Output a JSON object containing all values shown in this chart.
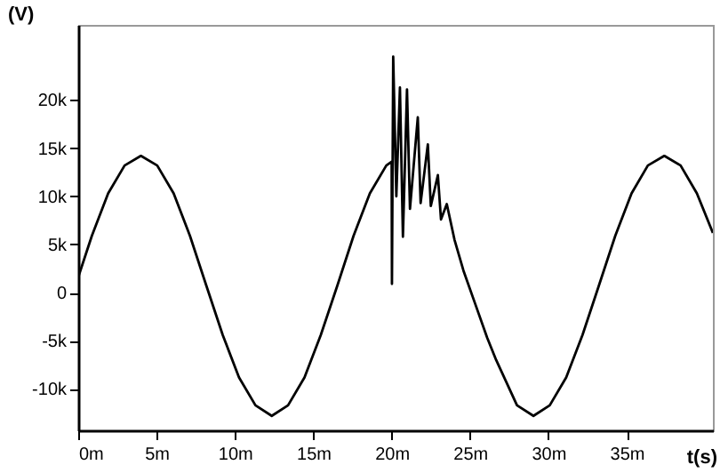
{
  "chart_data": {
    "type": "line",
    "xlabel": "t(s)",
    "ylabel": "(V)",
    "x": [
      0,
      0.87,
      1.91,
      2.96,
      4.0,
      5.04,
      6.09,
      7.13,
      8.18,
      9.22,
      10.26,
      11.31,
      12.35,
      13.39,
      14.44,
      15.48,
      16.53,
      17.57,
      18.61,
      19.66,
      20.0,
      20.02,
      20.1,
      20.3,
      20.53,
      20.72,
      20.98,
      21.17,
      21.67,
      21.85,
      22.31,
      22.5,
      22.95,
      23.15,
      23.52,
      24.01,
      24.58,
      25.34,
      26.1,
      26.67,
      28.0,
      29.05,
      30.09,
      31.14,
      32.18,
      33.22,
      34.27,
      35.31,
      36.35,
      37.4,
      38.44,
      39.48,
      40.5
    ],
    "series": [
      {
        "color": "#000000",
        "values": [
          1600,
          5900,
          10300,
          13200,
          14200,
          13200,
          10300,
          5900,
          700,
          -4400,
          -8800,
          -11700,
          -12800,
          -11700,
          -8800,
          -4400,
          700,
          5900,
          10300,
          13200,
          13600,
          900,
          24500,
          10000,
          21300,
          5800,
          21100,
          8700,
          18200,
          9300,
          15400,
          9000,
          12200,
          7600,
          9200,
          5500,
          2300,
          -1200,
          -4700,
          -7000,
          -11700,
          -12800,
          -11700,
          -8800,
          -4400,
          700,
          5900,
          10300,
          13200,
          14200,
          13200,
          10300,
          6200
        ]
      }
    ],
    "xlim": [
      0,
      40.5
    ],
    "ylim": [
      -14300,
      27800
    ],
    "xticks": [
      {
        "value": 0,
        "label": "0m"
      },
      {
        "value": 5,
        "label": "5m"
      },
      {
        "value": 10,
        "label": "10m"
      },
      {
        "value": 15,
        "label": "15m"
      },
      {
        "value": 20,
        "label": "20m"
      },
      {
        "value": 25,
        "label": "25m"
      },
      {
        "value": 30,
        "label": "30m"
      },
      {
        "value": 35,
        "label": "35m"
      }
    ],
    "yticks": [
      {
        "value": -10000,
        "label": "-10k"
      },
      {
        "value": -5000,
        "label": "-5k"
      },
      0,
      {
        "value": 5000,
        "label": "5k"
      },
      {
        "value": 10000,
        "label": "10k"
      },
      {
        "value": 15000,
        "label": "15k"
      },
      {
        "value": 20000,
        "label": "20k"
      }
    ],
    "grid": false,
    "marker": "none",
    "line_style": "solid"
  }
}
